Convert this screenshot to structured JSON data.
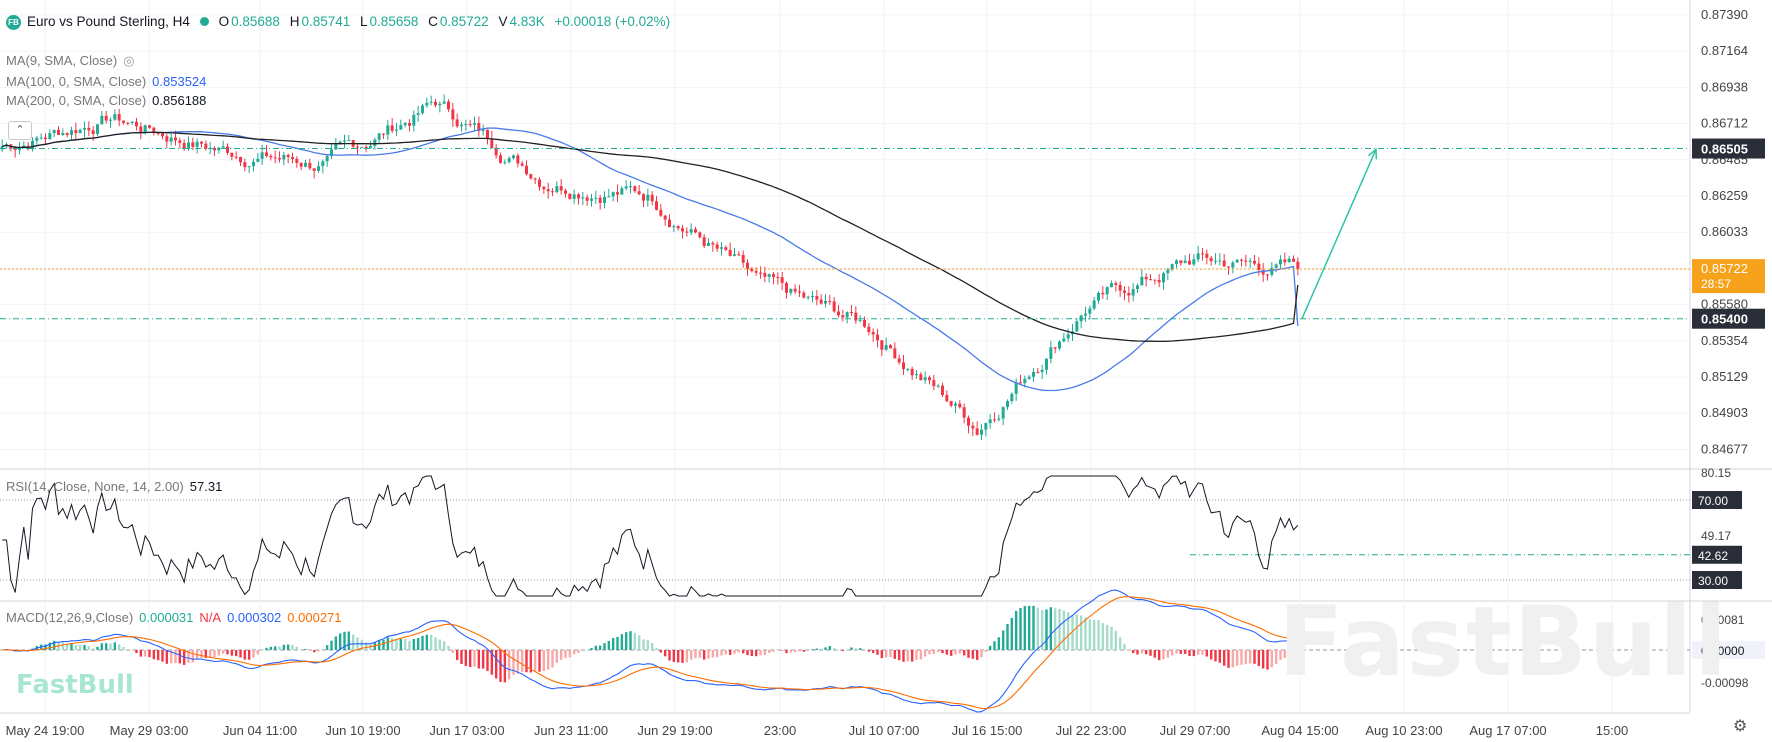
{
  "header": {
    "logo": "FB",
    "symbol": "Euro vs Pound Sterling, H4",
    "open_label": "O",
    "open": "0.85688",
    "high_label": "H",
    "high": "0.85741",
    "low_label": "L",
    "low": "0.85658",
    "close_label": "C",
    "close": "0.85722",
    "volume_label": "V",
    "volume": "4.83K",
    "change": "+0.00018 (+0.02%)"
  },
  "indicators": {
    "ma9": "MA(9, SMA, Close)",
    "ma100": "MA(100, 0, SMA, Close)",
    "ma100_value": "0.853524",
    "ma200": "MA(200, 0, SMA, Close)",
    "ma200_value": "0.856188",
    "rsi": "RSI(14, Close, None, 14, 2.00)",
    "rsi_value": "57.31",
    "macd": "MACD(12,26,9,Close)",
    "macd_value": "0.000031",
    "macd_na": "N/A",
    "macd_signal": "0.000302",
    "macd_hist": "0.000271"
  },
  "price_axis": [
    "0.87390",
    "0.87164",
    "0.86938",
    "0.86712",
    "0.86485",
    "0.86259",
    "0.86033",
    "0.85807",
    "0.85580",
    "0.85354",
    "0.85129",
    "0.84903",
    "0.84677"
  ],
  "rsi_axis": [
    "80.15",
    "64.17",
    "49.17"
  ],
  "macd_axis": [
    "0.00081",
    "-0.00098"
  ],
  "x_labels": [
    "May 24 19:00",
    "May 29 03:00",
    "Jun 04 11:00",
    "Jun 10 19:00",
    "Jun 17 03:00",
    "Jun 23 11:00",
    "Jun 29 19:00",
    "23:00",
    "Jul 10 07:00",
    "Jul 16 15:00",
    "Jul 22 23:00",
    "Jul 29 07:00",
    "Aug 04 15:00",
    "Aug 10 23:00",
    "Aug 17 07:00",
    "15:00"
  ],
  "watermark": "FastBull",
  "chart_data": [
    {
      "type": "candlestick",
      "title": "Euro vs Pound Sterling, H4",
      "ylim": [
        0.8445,
        0.8745
      ],
      "close_profile": {
        "x": [
          "May 24 19:00",
          "May 29 03:00",
          "Jun 04 11:00",
          "Jun 10 19:00",
          "Jun 17 03:00",
          "Jun 23 11:00",
          "Jun 29 19:00",
          "Jul 05 23:00",
          "Jul 10 07:00",
          "Jul 16 15:00",
          "Jul 22 23:00",
          "Jul 29 07:00",
          "Aug 04 15:00"
        ],
        "y": [
          0.8652,
          0.8671,
          0.865,
          0.864,
          0.868,
          0.8632,
          0.862,
          0.856,
          0.8535,
          0.847,
          0.8548,
          0.8578,
          0.8572
        ]
      },
      "last_price": 0.85722,
      "countdown": "28:57",
      "lines": [
        {
          "name": "resistance",
          "value": 0.86505,
          "label": "0.86505"
        },
        {
          "name": "support",
          "value": 0.854,
          "label": "0.85400"
        }
      ],
      "projection": {
        "from": 0.854,
        "to": 0.865
      },
      "ma100": {
        "color": "#4a7be8",
        "last": 0.853524
      },
      "ma200": {
        "color": "#222222",
        "last": 0.856188
      }
    },
    {
      "type": "line",
      "title": "RSI(14, Close, None, 14, 2.00)",
      "ylim": [
        20,
        85
      ],
      "levels": [
        {
          "value": 70,
          "label": "70.00"
        },
        {
          "value": 42.62,
          "label": "42.62"
        },
        {
          "value": 30,
          "label": "30.00"
        }
      ],
      "last": 57.31
    },
    {
      "type": "bar",
      "title": "MACD(12,26,9,Close)",
      "zero_label": "0.00000",
      "series": [
        {
          "name": "MACD",
          "color": "#2962ff",
          "last": 0.000302
        },
        {
          "name": "Signal",
          "color": "#ff6d00",
          "last": 0.000271
        },
        {
          "name": "Histogram",
          "color": "#22ab94",
          "last": 3.1e-05
        }
      ]
    }
  ]
}
